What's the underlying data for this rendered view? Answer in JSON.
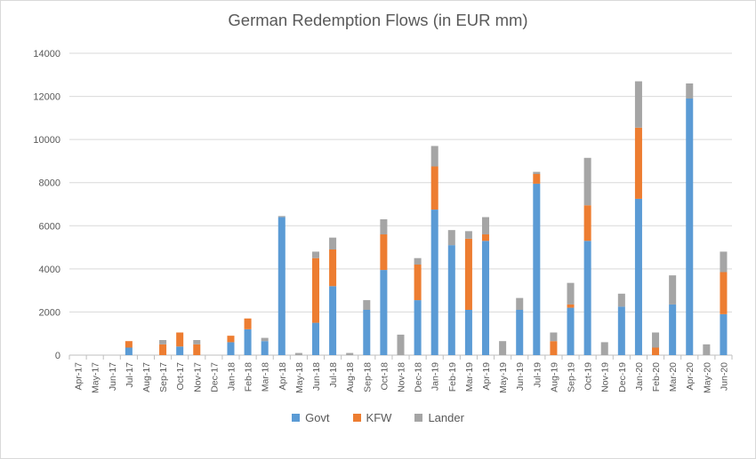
{
  "chart_data": {
    "type": "bar",
    "stacked": true,
    "title": "German Redemption Flows (in EUR mm)",
    "xlabel": "",
    "ylabel": "",
    "ylim": [
      0,
      14000
    ],
    "yticks": [
      "0",
      "2000",
      "4000",
      "6000",
      "8000",
      "10000",
      "12000",
      "14000"
    ],
    "grid": true,
    "legend_position": "bottom",
    "categories": [
      "Apr-17",
      "May-17",
      "Jun-17",
      "Jul-17",
      "Aug-17",
      "Sep-17",
      "Oct-17",
      "Nov-17",
      "Dec-17",
      "Jan-18",
      "Feb-18",
      "Mar-18",
      "Apr-18",
      "May-18",
      "Jun-18",
      "Jul-18",
      "Aug-18",
      "Sep-18",
      "Oct-18",
      "Nov-18",
      "Dec-18",
      "Jan-19",
      "Feb-19",
      "Mar-19",
      "Apr-19",
      "May-19",
      "Jun-19",
      "Jul-19",
      "Aug-19",
      "Sep-19",
      "Oct-19",
      "Nov-19",
      "Dec-19",
      "Jan-20",
      "Feb-20",
      "Mar-20",
      "Apr-20",
      "May-20",
      "Jun-20"
    ],
    "series": [
      {
        "name": "Govt",
        "color": "#5b9bd5",
        "values": [
          0,
          0,
          0,
          350,
          0,
          0,
          400,
          0,
          0,
          600,
          1200,
          650,
          6400,
          0,
          1500,
          3200,
          0,
          2100,
          3950,
          0,
          2550,
          6750,
          5100,
          2100,
          5300,
          0,
          2100,
          7950,
          0,
          2200,
          5300,
          0,
          2250,
          7250,
          0,
          2350,
          11900,
          0,
          1900
        ]
      },
      {
        "name": "KFW",
        "color": "#ed7d31",
        "values": [
          0,
          0,
          0,
          300,
          0,
          500,
          650,
          500,
          0,
          300,
          500,
          0,
          0,
          0,
          3000,
          1700,
          0,
          0,
          1650,
          0,
          1650,
          2000,
          0,
          3300,
          300,
          0,
          0,
          450,
          650,
          150,
          1650,
          0,
          0,
          3300,
          350,
          0,
          0,
          0,
          1950
        ]
      },
      {
        "name": "Lander",
        "color": "#a5a5a5",
        "values": [
          0,
          0,
          0,
          0,
          0,
          200,
          0,
          200,
          0,
          0,
          0,
          150,
          50,
          100,
          300,
          550,
          100,
          450,
          700,
          950,
          300,
          950,
          700,
          350,
          800,
          650,
          550,
          100,
          400,
          1000,
          2200,
          600,
          600,
          2150,
          700,
          1350,
          700,
          500,
          950
        ]
      }
    ]
  }
}
